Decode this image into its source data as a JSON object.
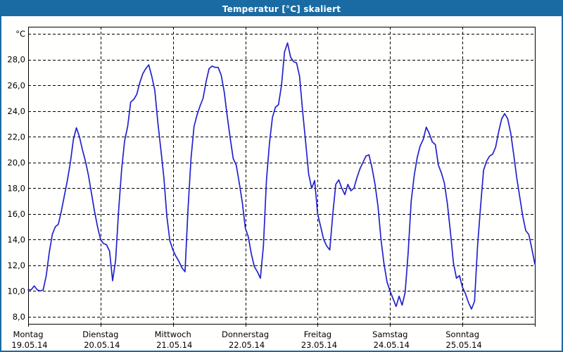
{
  "window": {
    "title": "Temperatur [°C] skaliert"
  },
  "colors": {
    "titlebar_bg": "#1a6ba3",
    "window_border": "#1a6ba3",
    "line": "#2222cc",
    "grid": "#000000",
    "axis": "#000000",
    "text": "#000000",
    "background": "#fffffe"
  },
  "chart_data": {
    "type": "line",
    "title": "Temperatur [°C] skaliert",
    "ylabel": "°C",
    "y_unit_label": "°C",
    "y_unit_value": 30,
    "y_tick_values": [
      8,
      10,
      12,
      14,
      16,
      18,
      20,
      22,
      24,
      26,
      28
    ],
    "y_tick_labels": [
      "8,0",
      "10,0",
      "12,0",
      "14,0",
      "16,0",
      "18,0",
      "20,0",
      "22,0",
      "24,0",
      "26,0",
      "28,0"
    ],
    "ylim": [
      7.45,
      30.56
    ],
    "grid": "dashed",
    "legend": "none",
    "x_total_hours": 168,
    "x_day_labels": [
      {
        "name": "Montag",
        "date": "19.05.14"
      },
      {
        "name": "Dienstag",
        "date": "20.05.14"
      },
      {
        "name": "Mittwoch",
        "date": "21.05.14"
      },
      {
        "name": "Donnerstag",
        "date": "22.05.14"
      },
      {
        "name": "Freitag",
        "date": "23.05.14"
      },
      {
        "name": "Samstag",
        "date": "24.05.14"
      },
      {
        "name": "Sonntag",
        "date": "25.05.14"
      }
    ],
    "series": [
      {
        "name": "Temperatur",
        "unit": "°C",
        "points": [
          [
            0,
            10.1
          ],
          [
            1,
            10.1
          ],
          [
            2,
            10.4
          ],
          [
            3,
            10.1
          ],
          [
            4,
            10.0
          ],
          [
            5,
            10.1
          ],
          [
            6,
            11.2
          ],
          [
            7,
            13.0
          ],
          [
            8,
            14.4
          ],
          [
            9,
            15.0
          ],
          [
            10,
            15.2
          ],
          [
            11,
            16.2
          ],
          [
            12,
            17.4
          ],
          [
            13,
            18.6
          ],
          [
            14,
            20.0
          ],
          [
            15,
            21.8
          ],
          [
            16,
            22.7
          ],
          [
            17,
            22.0
          ],
          [
            18,
            21.0
          ],
          [
            19,
            20.1
          ],
          [
            20,
            19.0
          ],
          [
            21,
            17.6
          ],
          [
            22,
            16.2
          ],
          [
            23,
            15.0
          ],
          [
            24,
            14.0
          ],
          [
            25,
            13.7
          ],
          [
            26,
            13.6
          ],
          [
            27,
            13.1
          ],
          [
            28,
            10.8
          ],
          [
            29,
            12.4
          ],
          [
            30,
            16.3
          ],
          [
            31,
            19.5
          ],
          [
            32,
            21.7
          ],
          [
            33,
            22.8
          ],
          [
            34,
            24.7
          ],
          [
            35,
            24.9
          ],
          [
            36,
            25.3
          ],
          [
            37,
            26.2
          ],
          [
            38,
            26.9
          ],
          [
            39,
            27.3
          ],
          [
            40,
            27.6
          ],
          [
            41,
            26.7
          ],
          [
            42,
            25.6
          ],
          [
            43,
            23.1
          ],
          [
            44,
            21.0
          ],
          [
            45,
            18.8
          ],
          [
            46,
            15.8
          ],
          [
            47,
            13.9
          ],
          [
            48,
            13.2
          ],
          [
            49,
            12.7
          ],
          [
            50,
            12.3
          ],
          [
            51,
            11.8
          ],
          [
            52,
            11.5
          ],
          [
            53,
            16.3
          ],
          [
            54,
            20.3
          ],
          [
            55,
            22.8
          ],
          [
            56,
            23.7
          ],
          [
            57,
            24.4
          ],
          [
            58,
            25.0
          ],
          [
            59,
            26.3
          ],
          [
            60,
            27.3
          ],
          [
            61,
            27.5
          ],
          [
            62,
            27.4
          ],
          [
            63,
            27.4
          ],
          [
            64,
            26.8
          ],
          [
            65,
            25.5
          ],
          [
            66,
            23.6
          ],
          [
            67,
            21.9
          ],
          [
            68,
            20.3
          ],
          [
            69,
            19.8
          ],
          [
            70,
            18.4
          ],
          [
            71,
            16.9
          ],
          [
            72,
            14.9
          ],
          [
            73,
            14.2
          ],
          [
            74,
            12.9
          ],
          [
            75,
            11.9
          ],
          [
            76,
            11.5
          ],
          [
            77,
            11.0
          ],
          [
            78,
            13.5
          ],
          [
            79,
            18.6
          ],
          [
            80,
            21.5
          ],
          [
            81,
            23.5
          ],
          [
            82,
            24.3
          ],
          [
            83,
            24.5
          ],
          [
            84,
            26.0
          ],
          [
            85,
            28.6
          ],
          [
            86,
            29.3
          ],
          [
            87,
            28.2
          ],
          [
            88,
            27.85
          ],
          [
            89,
            27.75
          ],
          [
            90,
            26.7
          ],
          [
            91,
            24.0
          ],
          [
            92,
            21.6
          ],
          [
            93,
            19.1
          ],
          [
            94,
            18.0
          ],
          [
            95,
            18.6
          ],
          [
            96,
            16.0
          ],
          [
            97,
            15.0
          ],
          [
            98,
            14.0
          ],
          [
            99,
            13.5
          ],
          [
            100,
            13.2
          ],
          [
            101,
            16.0
          ],
          [
            102,
            18.3
          ],
          [
            103,
            18.65
          ],
          [
            104,
            18.0
          ],
          [
            105,
            17.5
          ],
          [
            106,
            18.3
          ],
          [
            107,
            17.8
          ],
          [
            108,
            18.0
          ],
          [
            109,
            18.8
          ],
          [
            110,
            19.5
          ],
          [
            111,
            20.0
          ],
          [
            112,
            20.5
          ],
          [
            113,
            20.6
          ],
          [
            114,
            19.6
          ],
          [
            115,
            18.3
          ],
          [
            116,
            16.6
          ],
          [
            117,
            14.0
          ],
          [
            118,
            12.1
          ],
          [
            119,
            10.7
          ],
          [
            120,
            10.0
          ],
          [
            121,
            9.4
          ],
          [
            122,
            8.8
          ],
          [
            123,
            9.6
          ],
          [
            124,
            8.9
          ],
          [
            125,
            9.9
          ],
          [
            126,
            13.0
          ],
          [
            127,
            17.0
          ],
          [
            128,
            19.0
          ],
          [
            129,
            20.4
          ],
          [
            130,
            21.3
          ],
          [
            131,
            21.8
          ],
          [
            132,
            22.75
          ],
          [
            133,
            22.25
          ],
          [
            134,
            21.6
          ],
          [
            135,
            21.4
          ],
          [
            136,
            19.8
          ],
          [
            137,
            19.2
          ],
          [
            138,
            18.4
          ],
          [
            139,
            16.8
          ],
          [
            140,
            14.6
          ],
          [
            141,
            12.2
          ],
          [
            142,
            11.0
          ],
          [
            143,
            11.2
          ],
          [
            144,
            10.3
          ],
          [
            145,
            9.8
          ],
          [
            146,
            9.1
          ],
          [
            147,
            8.6
          ],
          [
            148,
            9.2
          ],
          [
            149,
            13.5
          ],
          [
            150,
            16.6
          ],
          [
            151,
            19.4
          ],
          [
            152,
            20.1
          ],
          [
            153,
            20.5
          ],
          [
            154,
            20.65
          ],
          [
            155,
            21.2
          ],
          [
            156,
            22.4
          ],
          [
            157,
            23.4
          ],
          [
            158,
            23.8
          ],
          [
            159,
            23.4
          ],
          [
            160,
            22.3
          ],
          [
            161,
            20.6
          ],
          [
            162,
            18.8
          ],
          [
            163,
            17.3
          ],
          [
            164,
            15.8
          ],
          [
            165,
            14.7
          ],
          [
            166,
            14.4
          ],
          [
            167,
            13.3
          ],
          [
            168,
            12.1
          ]
        ]
      }
    ]
  }
}
